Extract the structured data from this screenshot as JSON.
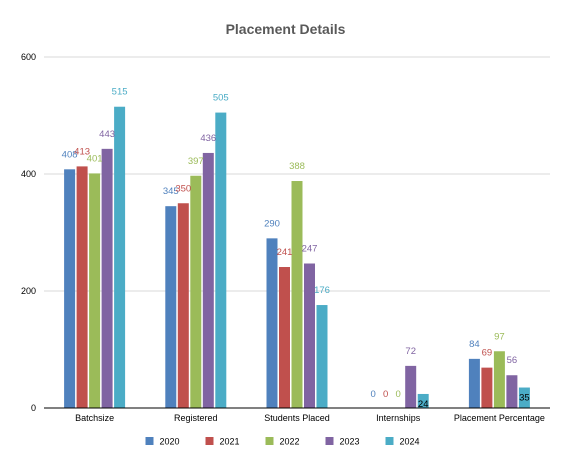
{
  "chart_data": {
    "type": "bar",
    "title": "Placement Details",
    "categories": [
      "Batchsize",
      "Registered",
      "Students Placed",
      "Internships",
      "Placement Percentage"
    ],
    "series": [
      {
        "name": "2020",
        "color": "#4f81bd",
        "values": [
          408,
          345,
          290,
          0,
          84
        ]
      },
      {
        "name": "2021",
        "color": "#c0504d",
        "values": [
          413,
          350,
          241,
          0,
          69
        ]
      },
      {
        "name": "2022",
        "color": "#9bbb59",
        "values": [
          401,
          397,
          388,
          0,
          97
        ]
      },
      {
        "name": "2023",
        "color": "#8064a2",
        "values": [
          443,
          436,
          247,
          72,
          56
        ]
      },
      {
        "name": "2024",
        "color": "#4bacc6",
        "values": [
          515,
          505,
          176,
          24,
          35
        ]
      }
    ],
    "y_ticks": [
      "0",
      "200",
      "400",
      "600"
    ],
    "ylim": [
      0,
      600
    ],
    "grid": true,
    "legend_position": "bottom"
  }
}
